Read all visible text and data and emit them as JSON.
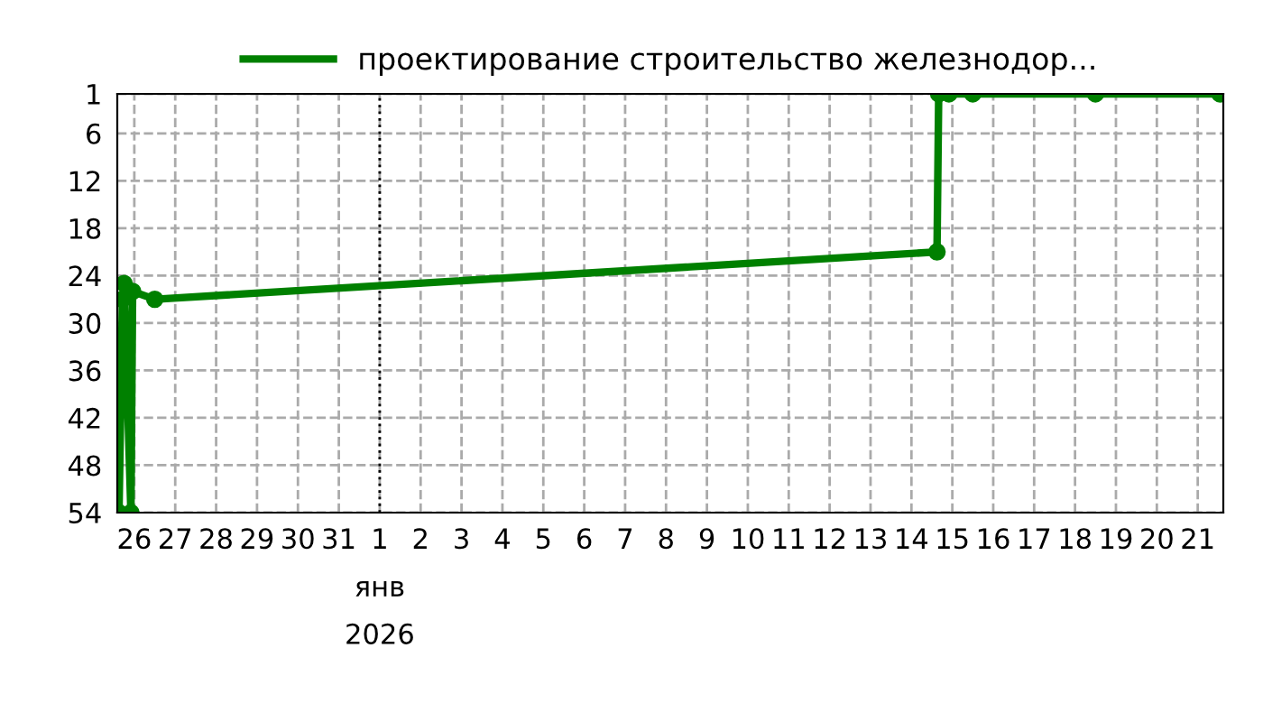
{
  "chart_data": {
    "type": "line",
    "x": [
      "2025-12-25T15:00",
      "2025-12-25T16:00",
      "2025-12-25T17:00",
      "2025-12-25T18:00",
      "2025-12-25T22:00",
      "2025-12-25T23:00",
      "2025-12-26T12:00",
      "2026-01-14T15:00",
      "2026-01-14T16:00",
      "2026-01-14T22:00",
      "2026-01-15T12:00",
      "2026-01-18T12:00",
      "2026-01-21T13:00"
    ],
    "series": [
      {
        "name": "проектирование строительство железнодор...",
        "color": "#008000",
        "values": [
          54,
          41,
          27,
          25,
          54,
          26,
          27,
          21,
          1,
          1,
          1,
          1,
          1
        ]
      }
    ],
    "xlim": [
      "2025-12-25T14:00",
      "2026-01-21T15:00"
    ],
    "xticks": [
      {
        "value": "2025-12-26",
        "label": "26"
      },
      {
        "value": "2025-12-27",
        "label": "27"
      },
      {
        "value": "2025-12-28",
        "label": "28"
      },
      {
        "value": "2025-12-29",
        "label": "29"
      },
      {
        "value": "2025-12-30",
        "label": "30"
      },
      {
        "value": "2025-12-31",
        "label": "31"
      },
      {
        "value": "2026-01-01",
        "label": "1\nянв\n2026"
      },
      {
        "value": "2026-01-02",
        "label": "2"
      },
      {
        "value": "2026-01-03",
        "label": "3"
      },
      {
        "value": "2026-01-04",
        "label": "4"
      },
      {
        "value": "2026-01-05",
        "label": "5"
      },
      {
        "value": "2026-01-06",
        "label": "6"
      },
      {
        "value": "2026-01-07",
        "label": "7"
      },
      {
        "value": "2026-01-08",
        "label": "8"
      },
      {
        "value": "2026-01-09",
        "label": "9"
      },
      {
        "value": "2026-01-10",
        "label": "10"
      },
      {
        "value": "2026-01-11",
        "label": "11"
      },
      {
        "value": "2026-01-12",
        "label": "12"
      },
      {
        "value": "2026-01-13",
        "label": "13"
      },
      {
        "value": "2026-01-14",
        "label": "14"
      },
      {
        "value": "2026-01-15",
        "label": "15"
      },
      {
        "value": "2026-01-16",
        "label": "16"
      },
      {
        "value": "2026-01-17",
        "label": "17"
      },
      {
        "value": "2026-01-18",
        "label": "18"
      },
      {
        "value": "2026-01-19",
        "label": "19"
      },
      {
        "value": "2026-01-20",
        "label": "20"
      },
      {
        "value": "2026-01-21",
        "label": "21"
      }
    ],
    "ylim": [
      54,
      1
    ],
    "yticks": [
      1,
      6,
      12,
      18,
      24,
      30,
      36,
      42,
      48,
      54
    ],
    "ref_lines": [
      {
        "axis": "x",
        "value": "2026-01-01",
        "label": null,
        "color": "#000000",
        "line_style": "dotted"
      }
    ],
    "grid": true,
    "legend": "top",
    "marker": "circle",
    "line_style": "solid"
  }
}
